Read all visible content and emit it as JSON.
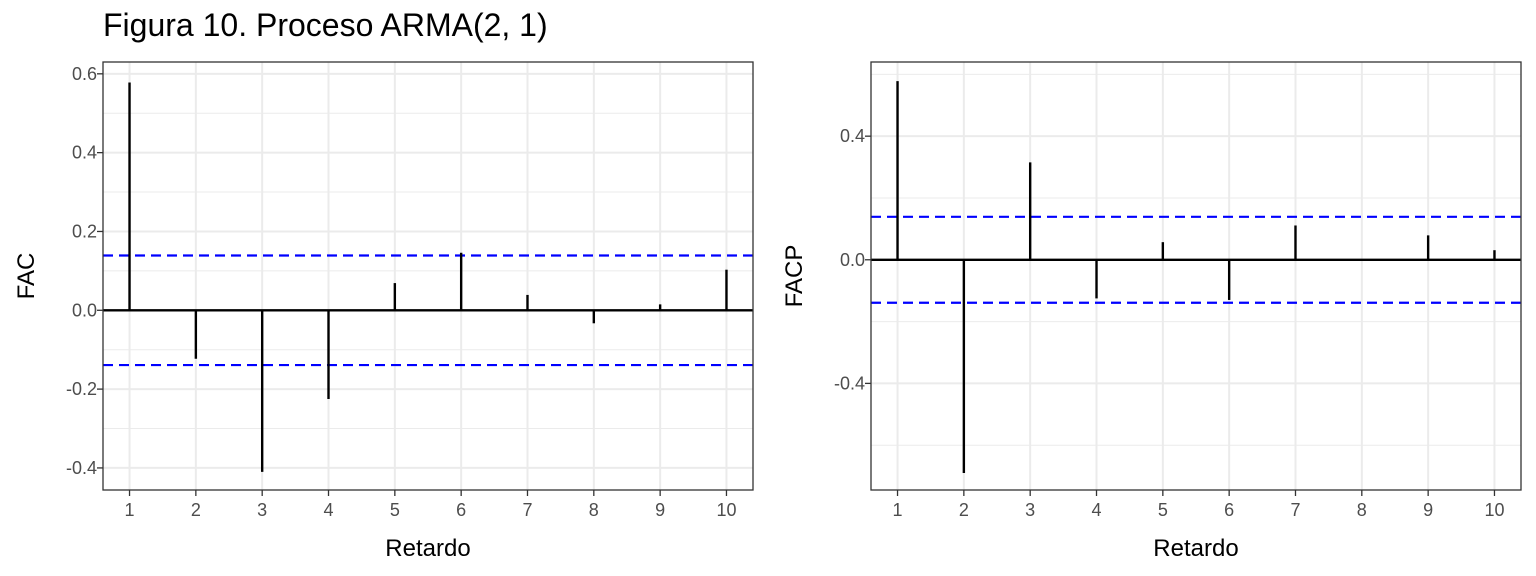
{
  "title": "Figura 10. Proceso ARMA(2, 1)",
  "chart_data": [
    {
      "type": "bar",
      "subtype": "correlogram",
      "ylabel": "FAC",
      "xlabel": "Retardo",
      "x": [
        1,
        2,
        3,
        4,
        5,
        6,
        7,
        8,
        9,
        10
      ],
      "values": [
        0.578,
        -0.123,
        -0.41,
        -0.225,
        0.069,
        0.146,
        0.039,
        -0.033,
        0.015,
        0.103
      ],
      "confidence_limit": 0.139,
      "ylim": [
        -0.456,
        0.63
      ],
      "xlim": [
        0.6,
        10.4
      ],
      "yticks": [
        -0.4,
        -0.2,
        0.0,
        0.2,
        0.4,
        0.6
      ],
      "ytick_labels": [
        "-0.4",
        "-0.2",
        "0.0",
        "0.2",
        "0.4",
        "0.6"
      ],
      "xtick_labels": [
        "1",
        "2",
        "3",
        "4",
        "5",
        "6",
        "7",
        "8",
        "9",
        "10"
      ],
      "grid": true,
      "colors": {
        "bar": "#000000",
        "confidence": "#0000ff",
        "grid": "#ebebeb",
        "zero": "#000000"
      }
    },
    {
      "type": "bar",
      "subtype": "correlogram",
      "ylabel": "FACP",
      "xlabel": "Retardo",
      "x": [
        1,
        2,
        3,
        4,
        5,
        6,
        7,
        8,
        9,
        10
      ],
      "values": [
        0.578,
        -0.69,
        0.315,
        -0.125,
        0.057,
        -0.13,
        0.111,
        0.0,
        0.079,
        0.031
      ],
      "confidence_limit": 0.139,
      "ylim": [
        -0.745,
        0.64
      ],
      "xlim": [
        0.6,
        10.4
      ],
      "yticks": [
        -0.4,
        0.0,
        0.4
      ],
      "ytick_labels": [
        "-0.4",
        "0.0",
        "0.4"
      ],
      "xtick_labels": [
        "1",
        "2",
        "3",
        "4",
        "5",
        "6",
        "7",
        "8",
        "9",
        "10"
      ],
      "grid": true,
      "colors": {
        "bar": "#000000",
        "confidence": "#0000ff",
        "grid": "#ebebeb",
        "zero": "#000000"
      }
    }
  ]
}
